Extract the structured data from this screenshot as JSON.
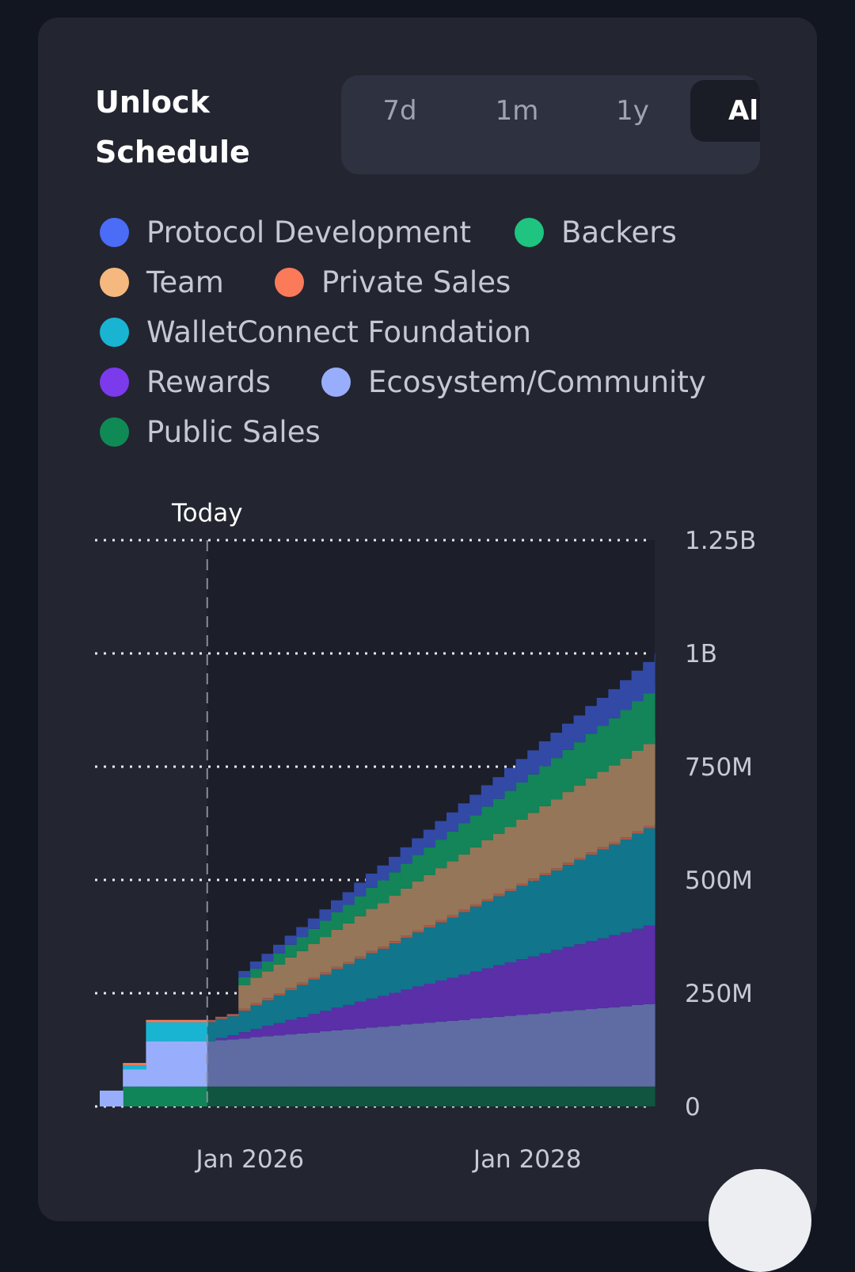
{
  "header": {
    "title_line1": "Unlock",
    "title_line2": "Schedule"
  },
  "range_tabs": [
    {
      "label": "7d"
    },
    {
      "label": "1m"
    },
    {
      "label": "1y"
    },
    {
      "label": "All",
      "active": true
    }
  ],
  "legend": [
    {
      "label": "Protocol Development",
      "color": "#4a6cf7"
    },
    {
      "label": "Backers",
      "color": "#1ec47f"
    },
    {
      "label": "Team",
      "color": "#f5b97f"
    },
    {
      "label": "Private Sales",
      "color": "#fb7a5a"
    },
    {
      "label": "WalletConnect Foundation",
      "color": "#19b4d2"
    },
    {
      "label": "Rewards",
      "color": "#7c3aed"
    },
    {
      "label": "Ecosystem/Community",
      "color": "#98aefc"
    },
    {
      "label": "Public Sales",
      "color": "#0f8a55"
    }
  ],
  "chart_data": {
    "type": "area",
    "stacked": true,
    "step": "monthly",
    "x_start": "2024-12",
    "x_ticks": [
      "Jan 2026",
      "Jan 2028"
    ],
    "x_tick_month_index": [
      13,
      37
    ],
    "today_label": "Today",
    "today_month_index": 9.3,
    "y_ticks": [
      "0",
      "250M",
      "500M",
      "750M",
      "1B",
      "1.25B"
    ],
    "y_tick_values": [
      0,
      250,
      500,
      750,
      1000,
      1250
    ],
    "ylim": [
      0,
      1250
    ],
    "y_unit": "M",
    "grid": true,
    "series": [
      {
        "name": "Public Sales",
        "color": "#10855a",
        "dim": "#0f5540",
        "values": [
          0,
          0,
          44,
          44,
          44,
          44,
          44,
          44,
          44,
          44,
          44,
          44,
          44,
          44,
          44,
          44,
          44,
          44,
          44,
          44,
          44,
          44,
          44,
          44,
          44,
          44,
          44,
          44,
          44,
          44,
          44,
          44,
          44,
          44,
          44,
          44,
          44,
          44,
          44,
          44,
          44,
          44,
          44,
          44,
          44,
          44,
          44,
          44,
          44
        ]
      },
      {
        "name": "Ecosystem/Community",
        "color": "#98aefc",
        "dim": "#5e6ca3",
        "values": [
          35,
          35,
          38,
          38,
          100,
          100,
          100,
          100,
          100,
          100,
          102,
          104,
          106,
          109,
          111,
          113,
          115,
          117,
          119,
          122,
          124,
          126,
          128,
          130,
          132,
          134,
          137,
          139,
          141,
          143,
          145,
          147,
          150,
          152,
          154,
          156,
          158,
          160,
          162,
          165,
          167,
          169,
          171,
          173,
          175,
          177,
          180,
          182,
          184
        ]
      },
      {
        "name": "Rewards",
        "color": "#7c3aed",
        "dim": "#5a2fa8",
        "values": [
          0,
          0,
          0,
          0,
          0,
          0,
          0,
          0,
          0,
          0,
          5,
          9,
          14,
          18,
          23,
          27,
          32,
          36,
          41,
          45,
          50,
          54,
          59,
          64,
          68,
          73,
          77,
          82,
          86,
          91,
          95,
          100,
          104,
          109,
          114,
          118,
          123,
          127,
          132,
          136,
          141,
          145,
          150,
          154,
          159,
          163,
          168,
          173,
          177
        ]
      },
      {
        "name": "WalletConnect Foundation",
        "color": "#19b4d2",
        "dim": "#11758c",
        "values": [
          0,
          0,
          9,
          9,
          42,
          42,
          42,
          42,
          42,
          42,
          42,
          42,
          47,
          52,
          56,
          61,
          66,
          71,
          76,
          80,
          85,
          90,
          95,
          100,
          104,
          109,
          114,
          119,
          124,
          128,
          133,
          138,
          143,
          148,
          152,
          157,
          162,
          167,
          172,
          176,
          181,
          186,
          191,
          196,
          200,
          205,
          210,
          215,
          220
        ]
      },
      {
        "name": "Private Sales",
        "color": "#fb7a5a",
        "dim": "#a85a48",
        "values": [
          0,
          0,
          5,
          5,
          5,
          5,
          5,
          5,
          5,
          5,
          5,
          5,
          5,
          5,
          5,
          5,
          5,
          5,
          5,
          5,
          5,
          5,
          5,
          5,
          5,
          5,
          5,
          5,
          5,
          5,
          5,
          5,
          5,
          5,
          5,
          5,
          5,
          5,
          5,
          5,
          5,
          5,
          5,
          5,
          5,
          5,
          5,
          5,
          5
        ]
      },
      {
        "name": "Team",
        "color": "#f5b97f",
        "dim": "#957659",
        "values": [
          0,
          0,
          0,
          0,
          0,
          0,
          0,
          0,
          0,
          0,
          0,
          0,
          52,
          56,
          59,
          63,
          67,
          70,
          74,
          78,
          82,
          85,
          89,
          93,
          96,
          100,
          104,
          108,
          111,
          115,
          119,
          122,
          126,
          130,
          133,
          137,
          141,
          145,
          148,
          152,
          156,
          159,
          163,
          167,
          170,
          174,
          178,
          181,
          185
        ]
      },
      {
        "name": "Backers",
        "color": "#1ec47f",
        "dim": "#138558",
        "values": [
          0,
          0,
          0,
          0,
          0,
          0,
          0,
          0,
          0,
          0,
          0,
          0,
          17,
          20,
          22,
          25,
          28,
          31,
          33,
          36,
          39,
          41,
          44,
          47,
          50,
          52,
          55,
          58,
          61,
          63,
          66,
          69,
          71,
          74,
          77,
          80,
          82,
          85,
          88,
          91,
          93,
          96,
          99,
          101,
          104,
          107,
          110,
          112,
          115
        ]
      },
      {
        "name": "Protocol Development",
        "color": "#4a6cf7",
        "dim": "#3249a6",
        "values": [
          0,
          0,
          0,
          0,
          0,
          0,
          0,
          0,
          0,
          0,
          0,
          0,
          14,
          16,
          17,
          19,
          20,
          22,
          23,
          25,
          26,
          28,
          30,
          31,
          33,
          34,
          36,
          37,
          39,
          41,
          42,
          44,
          45,
          47,
          48,
          50,
          52,
          53,
          55,
          56,
          58,
          59,
          61,
          62,
          64,
          66,
          67,
          69,
          70
        ]
      }
    ]
  }
}
